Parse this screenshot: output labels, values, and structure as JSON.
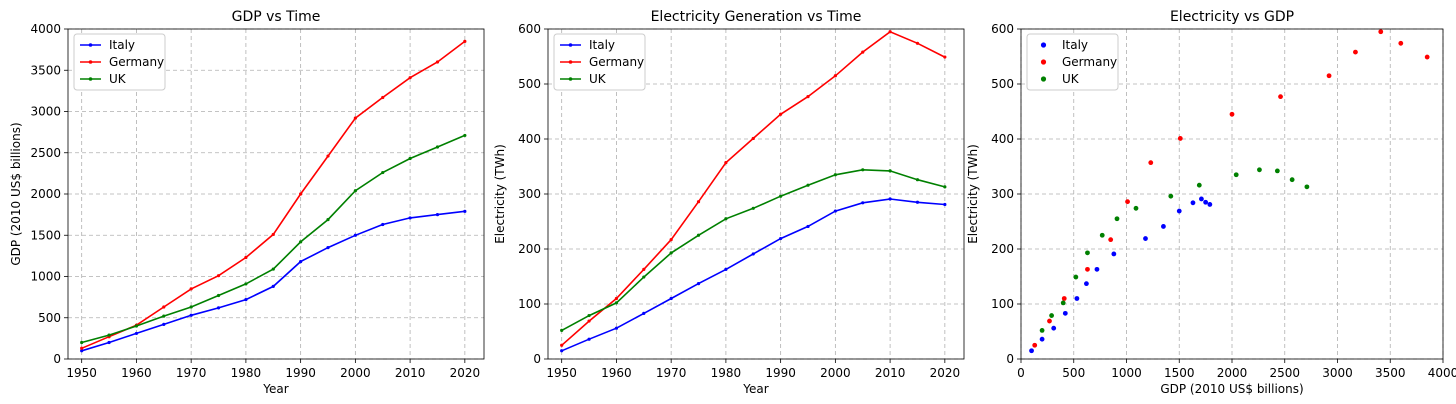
{
  "colors": {
    "Italy": "#0000ff",
    "Germany": "#ff0000",
    "UK": "#008000"
  },
  "chart_data": [
    {
      "type": "line",
      "title": "GDP vs Time",
      "xlabel": "Year",
      "ylabel": "GDP (2010 US$ billions)",
      "xlim": [
        1947.5,
        2023.5
      ],
      "ylim": [
        0,
        4000
      ],
      "xticks": [
        1950,
        1960,
        1970,
        1980,
        1990,
        2000,
        2010,
        2020
      ],
      "yticks": [
        0,
        500,
        1000,
        1500,
        2000,
        2500,
        3000,
        3500,
        4000
      ],
      "grid": true,
      "legend": "upper-left",
      "x": [
        1950,
        1955,
        1960,
        1965,
        1970,
        1975,
        1980,
        1985,
        1990,
        1995,
        2000,
        2005,
        2010,
        2015,
        2020
      ],
      "series": [
        {
          "name": "Italy",
          "values": [
            100,
            200,
            310,
            420,
            530,
            620,
            720,
            880,
            1180,
            1350,
            1500,
            1630,
            1710,
            1750,
            1790
          ]
        },
        {
          "name": "Germany",
          "values": [
            130,
            270,
            410,
            630,
            850,
            1010,
            1230,
            1510,
            2000,
            2460,
            2920,
            3170,
            3410,
            3600,
            3850
          ]
        },
        {
          "name": "UK",
          "values": [
            200,
            290,
            400,
            520,
            630,
            770,
            910,
            1090,
            1420,
            1690,
            2040,
            2260,
            2430,
            2570,
            2710
          ]
        }
      ]
    },
    {
      "type": "line",
      "title": "Electricity Generation vs Time",
      "xlabel": "Year",
      "ylabel": "Electricity (TWh)",
      "xlim": [
        1947.5,
        2023.5
      ],
      "ylim": [
        0,
        600
      ],
      "xticks": [
        1950,
        1960,
        1970,
        1980,
        1990,
        2000,
        2010,
        2020
      ],
      "yticks": [
        0,
        100,
        200,
        300,
        400,
        500,
        600
      ],
      "grid": true,
      "legend": "upper-left",
      "x": [
        1950,
        1955,
        1960,
        1965,
        1970,
        1975,
        1980,
        1985,
        1990,
        1995,
        2000,
        2005,
        2010,
        2015,
        2020
      ],
      "series": [
        {
          "name": "Italy",
          "values": [
            15,
            36,
            56,
            83,
            110,
            137,
            163,
            191,
            219,
            241,
            269,
            284,
            291,
            285,
            281
          ]
        },
        {
          "name": "Germany",
          "values": [
            25,
            69,
            110,
            163,
            217,
            286,
            357,
            401,
            445,
            477,
            515,
            558,
            595,
            574,
            549
          ]
        },
        {
          "name": "UK",
          "values": [
            52,
            79,
            102,
            149,
            193,
            225,
            255,
            274,
            296,
            316,
            335,
            344,
            342,
            326,
            313
          ]
        }
      ]
    },
    {
      "type": "scatter",
      "title": "Electricity vs GDP",
      "xlabel": "GDP (2010 US$ billions)",
      "ylabel": "Electricity (TWh)",
      "xlim": [
        0,
        4000
      ],
      "ylim": [
        0,
        600
      ],
      "xticks": [
        0,
        500,
        1000,
        1500,
        2000,
        2500,
        3000,
        3500,
        4000
      ],
      "yticks": [
        0,
        100,
        200,
        300,
        400,
        500,
        600
      ],
      "grid": true,
      "legend": "upper-left",
      "series": [
        {
          "name": "Italy",
          "x": [
            100,
            200,
            310,
            420,
            530,
            620,
            720,
            880,
            1180,
            1350,
            1500,
            1630,
            1710,
            1750,
            1790
          ],
          "y": [
            15,
            36,
            56,
            83,
            110,
            137,
            163,
            191,
            219,
            241,
            269,
            284,
            291,
            285,
            281
          ]
        },
        {
          "name": "Germany",
          "x": [
            130,
            270,
            410,
            630,
            850,
            1010,
            1230,
            1510,
            2000,
            2460,
            2920,
            3170,
            3410,
            3600,
            3850
          ],
          "y": [
            25,
            69,
            110,
            163,
            217,
            286,
            357,
            401,
            445,
            477,
            515,
            558,
            595,
            574,
            549
          ]
        },
        {
          "name": "UK",
          "x": [
            200,
            290,
            400,
            520,
            630,
            770,
            910,
            1090,
            1420,
            1690,
            2040,
            2260,
            2430,
            2570,
            2710
          ],
          "y": [
            52,
            79,
            102,
            149,
            193,
            225,
            255,
            274,
            296,
            316,
            335,
            344,
            342,
            326,
            313
          ]
        }
      ]
    }
  ]
}
